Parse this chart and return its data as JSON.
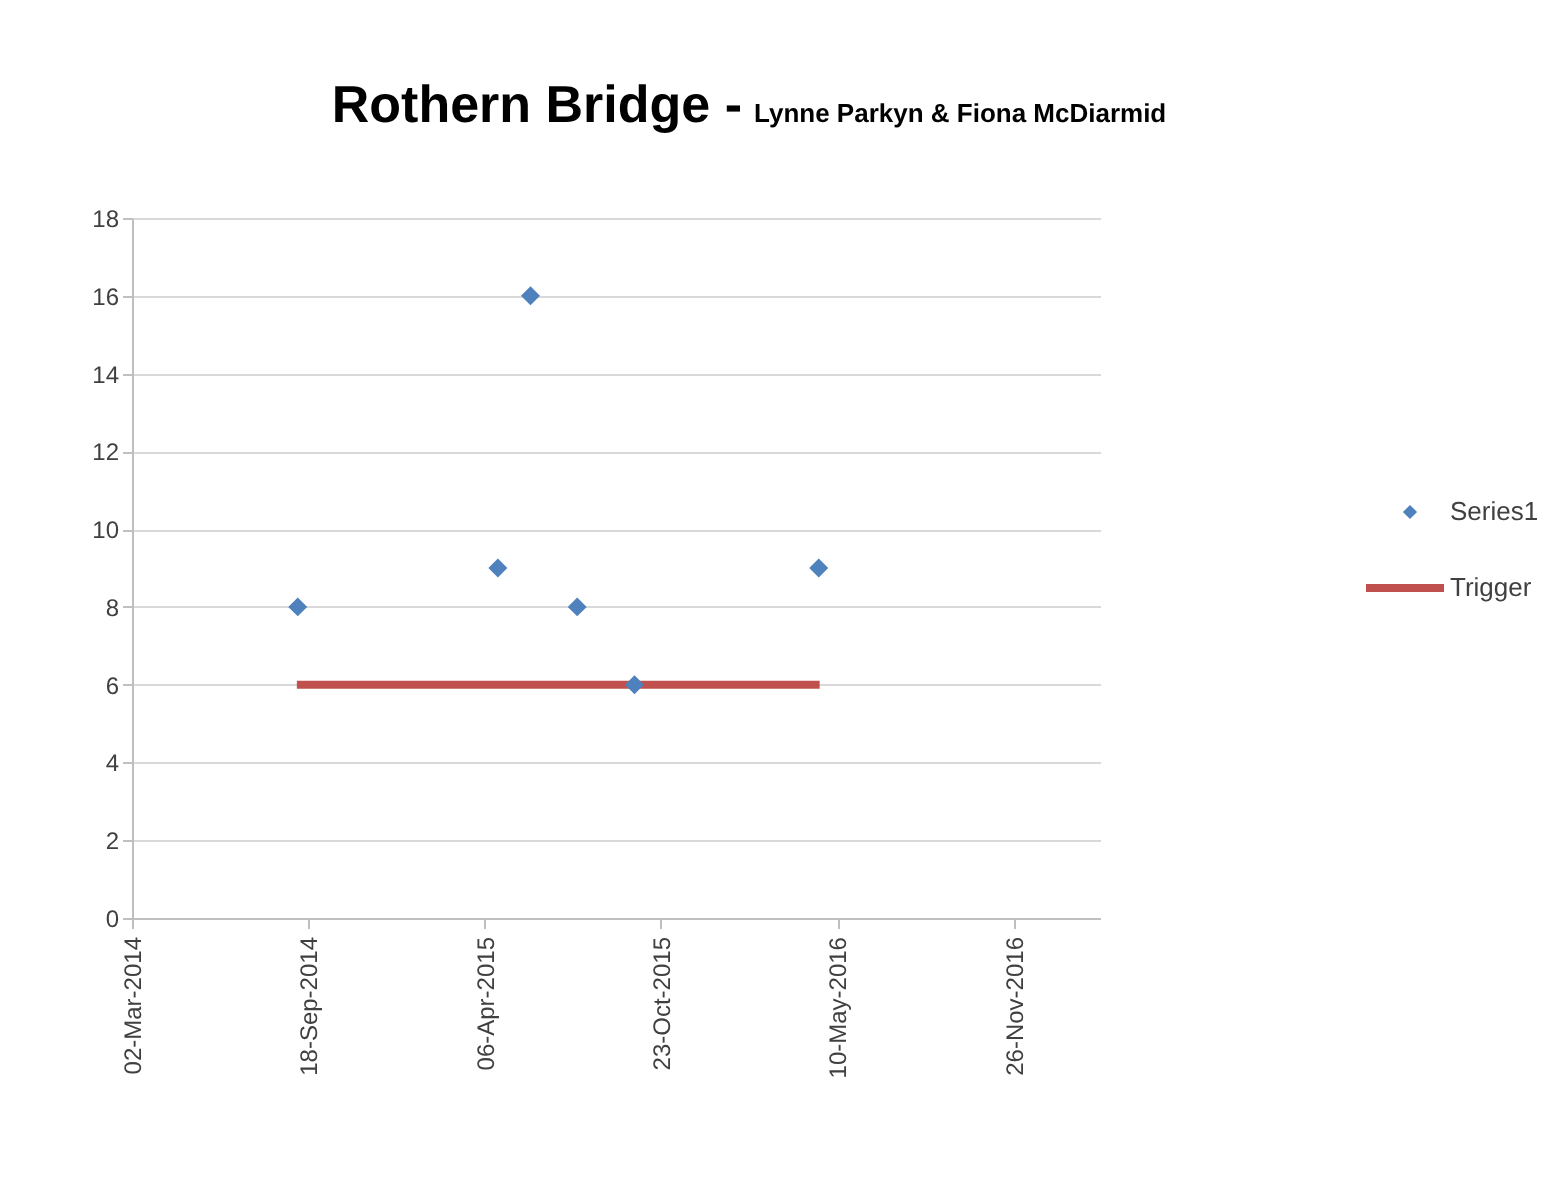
{
  "chart_data": {
    "type": "scatter",
    "title": "Rothern Bridge -",
    "subtitle": "Lynne Parkyn & Fiona McDiarmid",
    "x": [
      "2014-09-06",
      "2015-04-21",
      "2015-05-28",
      "2015-07-20",
      "2015-09-23",
      "2016-04-19"
    ],
    "series": [
      {
        "name": "Series1",
        "color": "#4f81bd",
        "type": "scatter",
        "marker": "diamond",
        "values": [
          8,
          9,
          16,
          8,
          6,
          9
        ]
      },
      {
        "name": "Trigger",
        "color": "#c0504d",
        "type": "line",
        "x": [
          "2014-09-05",
          "2016-04-20"
        ],
        "values": [
          6,
          6
        ]
      }
    ],
    "xlim": [
      "2014-03-02",
      "2017-03-04"
    ],
    "xticks": [
      {
        "value": "2014-03-02",
        "label": "02-Mar-2014"
      },
      {
        "value": "2014-09-18",
        "label": "18-Sep-2014"
      },
      {
        "value": "2015-04-06",
        "label": "06-Apr-2015"
      },
      {
        "value": "2015-10-23",
        "label": "23-Oct-2015"
      },
      {
        "value": "2016-05-10",
        "label": "10-May-2016"
      },
      {
        "value": "2016-11-26",
        "label": "26-Nov-2016"
      }
    ],
    "ylim": [
      0,
      18
    ],
    "yticks": [
      0,
      2,
      4,
      6,
      8,
      10,
      12,
      14,
      16,
      18
    ],
    "grid": "y",
    "legend": "right"
  }
}
